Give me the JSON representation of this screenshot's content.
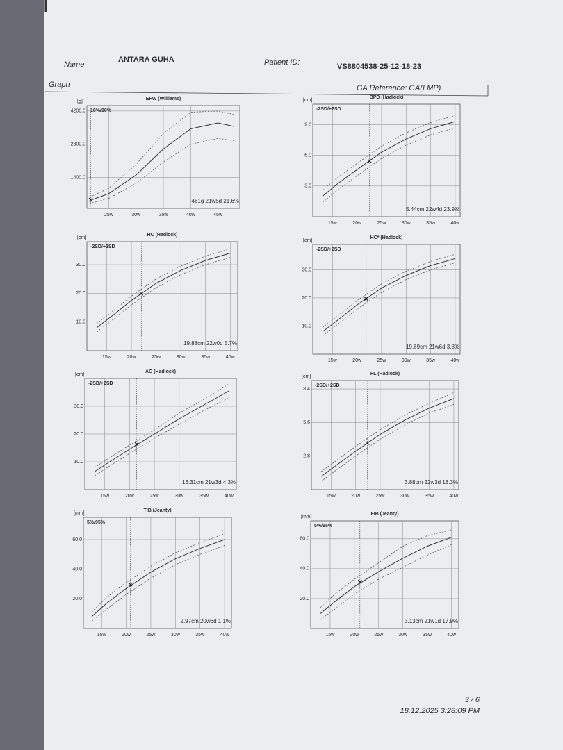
{
  "header": {
    "name_label": "Name:",
    "name": "ANTARA GUHA",
    "patient_id_label": "Patient ID:",
    "patient_id": "VS8804538-25-12-18-23",
    "section": "Graph",
    "ga_reference": "GA Reference: GA(LMP)"
  },
  "charts": [
    {
      "type": "line",
      "title": "EFW (Williams)",
      "unit": "[g]",
      "band_label": "10%/90%",
      "measurement": "461g 21w5d 21.6%",
      "xlim": [
        21,
        49
      ],
      "ylim": [
        100,
        4430
      ],
      "xticks": [
        {
          "value": 25,
          "label": "25w"
        },
        {
          "value": 30,
          "label": "30w"
        },
        {
          "value": 35,
          "label": "35w"
        },
        {
          "value": 40,
          "label": "40w"
        },
        {
          "value": 45,
          "label": "45w"
        }
      ],
      "yticks": [
        {
          "value": 1400,
          "label": "1400.0"
        },
        {
          "value": 2800,
          "label": "2800.0"
        },
        {
          "value": 4200,
          "label": "4200.0"
        }
      ],
      "x": [
        22,
        25,
        30,
        35,
        40,
        45,
        48
      ],
      "series": [
        {
          "style": "dotted",
          "color": "#444",
          "values": [
            330,
            520,
            1150,
            2050,
            2800,
            3050,
            2950
          ]
        },
        {
          "style": "solid",
          "color": "#333",
          "values": [
            470,
            720,
            1500,
            2600,
            3450,
            3700,
            3550
          ]
        },
        {
          "style": "dotted",
          "color": "#444",
          "values": [
            620,
            950,
            1950,
            3250,
            4150,
            4200,
            4050
          ]
        }
      ],
      "marker": {
        "x": 21.71,
        "y": 461
      }
    },
    {
      "type": "line",
      "title": "BPD (Hadlock)",
      "unit": "[cm]",
      "band_label": "-2SD/+2SD",
      "measurement": "5.44cm 22w4d 23.9%",
      "xlim": [
        11,
        41
      ],
      "ylim": [
        0,
        11
      ],
      "xticks": [
        {
          "value": 15,
          "label": "15w"
        },
        {
          "value": 20,
          "label": "20w"
        },
        {
          "value": 25,
          "label": "25w"
        },
        {
          "value": 30,
          "label": "30w"
        },
        {
          "value": 35,
          "label": "35w"
        },
        {
          "value": 40,
          "label": "40w"
        }
      ],
      "yticks": [
        {
          "value": 3,
          "label": "3.0"
        },
        {
          "value": 6,
          "label": "6.0"
        },
        {
          "value": 9,
          "label": "9.0"
        }
      ],
      "x": [
        13,
        16,
        20,
        25,
        30,
        35,
        40
      ],
      "series": [
        {
          "style": "dotted",
          "color": "#444",
          "values": [
            1.4,
            2.6,
            4.0,
            5.7,
            7.0,
            8.0,
            8.7
          ]
        },
        {
          "style": "solid",
          "color": "#333",
          "values": [
            2.0,
            3.2,
            4.6,
            6.3,
            7.6,
            8.6,
            9.3
          ]
        },
        {
          "style": "dotted",
          "color": "#444",
          "values": [
            2.6,
            3.8,
            5.2,
            6.9,
            8.2,
            9.2,
            9.9
          ]
        }
      ],
      "marker": {
        "x": 22.57,
        "y": 5.44
      }
    },
    {
      "type": "line",
      "title": "HC (Hadlock)",
      "unit": "[cm]",
      "band_label": "-2SD/+2SD",
      "measurement": "19.88cm 22w0d 5.7%",
      "xlim": [
        11,
        41.5
      ],
      "ylim": [
        0,
        38
      ],
      "xticks": [
        {
          "value": 15,
          "label": "15w"
        },
        {
          "value": 20,
          "label": "20w"
        },
        {
          "value": 25,
          "label": "25w"
        },
        {
          "value": 30,
          "label": "30w"
        },
        {
          "value": 35,
          "label": "35w"
        },
        {
          "value": 40,
          "label": "40w"
        }
      ],
      "yticks": [
        {
          "value": 10,
          "label": "10.0"
        },
        {
          "value": 20,
          "label": "20.0"
        },
        {
          "value": 30,
          "label": "30.0"
        }
      ],
      "x": [
        13,
        16,
        20,
        25,
        30,
        35,
        40
      ],
      "series": [
        {
          "style": "dotted",
          "color": "#444",
          "values": [
            6.5,
            10.5,
            16,
            22,
            26.5,
            30,
            32.5
          ]
        },
        {
          "style": "solid",
          "color": "#333",
          "values": [
            8,
            12,
            17.5,
            23.5,
            28,
            31.5,
            34
          ]
        },
        {
          "style": "dotted",
          "color": "#444",
          "values": [
            9.5,
            13.5,
            19,
            25,
            29.5,
            33,
            35.5
          ]
        }
      ],
      "marker": {
        "x": 22,
        "y": 19.88
      }
    },
    {
      "type": "line",
      "title": "HC* (Hadlock)",
      "unit": "[cm]",
      "band_label": "-2SD/+2SD",
      "measurement": "19.69cm 21w6d 3.8%",
      "xlim": [
        11,
        41
      ],
      "ylim": [
        0,
        39
      ],
      "xticks": [
        {
          "value": 15,
          "label": "15w"
        },
        {
          "value": 20,
          "label": "20w"
        },
        {
          "value": 25,
          "label": "25w"
        },
        {
          "value": 30,
          "label": "30w"
        },
        {
          "value": 35,
          "label": "35w"
        },
        {
          "value": 40,
          "label": "40w"
        }
      ],
      "yticks": [
        {
          "value": 10,
          "label": "10.0"
        },
        {
          "value": 20,
          "label": "20.0"
        },
        {
          "value": 30,
          "label": "30.0"
        }
      ],
      "x": [
        13,
        16,
        20,
        25,
        30,
        35,
        40
      ],
      "series": [
        {
          "style": "dotted",
          "color": "#444",
          "values": [
            6.5,
            10.5,
            16,
            22,
            26.5,
            30,
            32.5
          ]
        },
        {
          "style": "solid",
          "color": "#333",
          "values": [
            8,
            12,
            17.5,
            23.5,
            28,
            31.5,
            34
          ]
        },
        {
          "style": "dotted",
          "color": "#444",
          "values": [
            9.5,
            13.5,
            19,
            25,
            29.5,
            33,
            35.5
          ]
        }
      ],
      "marker": {
        "x": 21.86,
        "y": 19.69
      }
    },
    {
      "type": "line",
      "title": "AC (Hadlock)",
      "unit": "[cm]",
      "band_label": "-2SD/+2SD",
      "measurement": "16.31cm 21w3d 4.3%",
      "xlim": [
        11,
        41.5
      ],
      "ylim": [
        0,
        40
      ],
      "xticks": [
        {
          "value": 15,
          "label": "15w"
        },
        {
          "value": 20,
          "label": "20w"
        },
        {
          "value": 25,
          "label": "25w"
        },
        {
          "value": 30,
          "label": "30w"
        },
        {
          "value": 35,
          "label": "35w"
        },
        {
          "value": 40,
          "label": "40w"
        }
      ],
      "yticks": [
        {
          "value": 10,
          "label": "10.0"
        },
        {
          "value": 20,
          "label": "20.0"
        },
        {
          "value": 30,
          "label": "30.0"
        }
      ],
      "x": [
        13,
        16,
        20,
        25,
        30,
        35,
        40
      ],
      "series": [
        {
          "style": "dotted",
          "color": "#444",
          "values": [
            5,
            8.5,
            13,
            18.5,
            23.5,
            28.5,
            33
          ]
        },
        {
          "style": "solid",
          "color": "#333",
          "values": [
            6.5,
            10,
            14.5,
            20,
            25.5,
            30.5,
            35.5
          ]
        },
        {
          "style": "dotted",
          "color": "#444",
          "values": [
            8,
            11.5,
            16,
            21.5,
            27.5,
            32.5,
            38
          ]
        }
      ],
      "marker": {
        "x": 21.43,
        "y": 16.31
      }
    },
    {
      "type": "line",
      "title": "FL (Hadlock)",
      "unit": "[cm]",
      "band_label": "-2SD/+2SD",
      "measurement": "3.88cm 22w3d 18.3%",
      "xlim": [
        11,
        41
      ],
      "ylim": [
        0,
        9.1
      ],
      "xticks": [
        {
          "value": 15,
          "label": "15w"
        },
        {
          "value": 20,
          "label": "20w"
        },
        {
          "value": 25,
          "label": "25w"
        },
        {
          "value": 30,
          "label": "30w"
        },
        {
          "value": 35,
          "label": "35w"
        },
        {
          "value": 40,
          "label": "40w"
        }
      ],
      "yticks": [
        {
          "value": 2.8,
          "label": "2.8"
        },
        {
          "value": 5.6,
          "label": "5.6"
        },
        {
          "value": 8.4,
          "label": "8.4"
        }
      ],
      "x": [
        13,
        16,
        20,
        25,
        30,
        35,
        40
      ],
      "series": [
        {
          "style": "dotted",
          "color": "#444",
          "values": [
            0.7,
            1.6,
            2.8,
            4.2,
            5.4,
            6.4,
            7.1
          ]
        },
        {
          "style": "solid",
          "color": "#333",
          "values": [
            1.1,
            2.0,
            3.2,
            4.6,
            5.8,
            6.8,
            7.6
          ]
        },
        {
          "style": "dotted",
          "color": "#444",
          "values": [
            1.5,
            2.4,
            3.6,
            5.0,
            6.2,
            7.2,
            8.1
          ]
        }
      ],
      "marker": {
        "x": 22.43,
        "y": 3.88
      }
    },
    {
      "type": "line",
      "title": "TIB (Jeanty)",
      "unit": "[mm]",
      "band_label": "5%/95%",
      "measurement": "2.97cm 20w6d 1.1%",
      "xlim": [
        11.3,
        41.4
      ],
      "ylim": [
        0,
        75
      ],
      "xticks": [
        {
          "value": 15,
          "label": "15w"
        },
        {
          "value": 20,
          "label": "20w"
        },
        {
          "value": 25,
          "label": "25w"
        },
        {
          "value": 30,
          "label": "30w"
        },
        {
          "value": 35,
          "label": "35w"
        },
        {
          "value": 40,
          "label": "40w"
        }
      ],
      "yticks": [
        {
          "value": 20,
          "label": "20.0"
        },
        {
          "value": 40,
          "label": "40.0"
        },
        {
          "value": 60,
          "label": "60.0"
        }
      ],
      "x": [
        13,
        16,
        20,
        25,
        30,
        35,
        40
      ],
      "series": [
        {
          "style": "dotted",
          "color": "#444",
          "values": [
            5,
            13,
            23,
            34,
            43,
            50,
            56
          ]
        },
        {
          "style": "solid",
          "color": "#333",
          "values": [
            8,
            17,
            27,
            38,
            47,
            54,
            60
          ]
        },
        {
          "style": "dotted",
          "color": "#444",
          "values": [
            11,
            21,
            31,
            42,
            51,
            58,
            64
          ]
        }
      ],
      "marker": {
        "x": 20.86,
        "y": 29.7
      }
    },
    {
      "type": "line",
      "title": "FIB (Jeanty)",
      "unit": "[mm]",
      "band_label": "5%/95%",
      "measurement": "3.13cm 21w1d 17.9%",
      "xlim": [
        11,
        41.5
      ],
      "ylim": [
        0,
        72
      ],
      "xticks": [
        {
          "value": 15,
          "label": "15w"
        },
        {
          "value": 20,
          "label": "20w"
        },
        {
          "value": 25,
          "label": "25w"
        },
        {
          "value": 30,
          "label": "30w"
        },
        {
          "value": 35,
          "label": "35w"
        },
        {
          "value": 40,
          "label": "40w"
        }
      ],
      "yticks": [
        {
          "value": 20,
          "label": "20.0"
        },
        {
          "value": 40,
          "label": "40.0"
        },
        {
          "value": 60,
          "label": "60.0"
        }
      ],
      "x": [
        13,
        16,
        20,
        25,
        30,
        35,
        40
      ],
      "series": [
        {
          "style": "dotted",
          "color": "#444",
          "values": [
            6,
            13,
            23,
            33,
            41,
            49,
            56
          ]
        },
        {
          "style": "solid",
          "color": "#333",
          "values": [
            10,
            18,
            28,
            38,
            47,
            55,
            61
          ]
        },
        {
          "style": "dotted",
          "color": "#444",
          "values": [
            14,
            23,
            33,
            44,
            55,
            62,
            66
          ]
        }
      ],
      "marker": {
        "x": 21.14,
        "y": 31.3
      }
    }
  ],
  "footer": {
    "page": "3 / 6",
    "timestamp": "18.12.2025  3:28:09 PM"
  }
}
